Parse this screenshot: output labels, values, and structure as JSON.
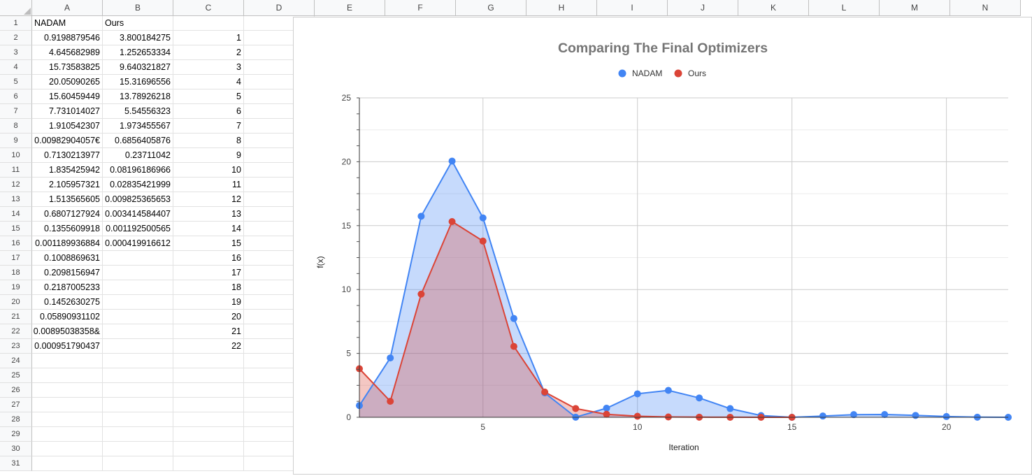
{
  "columns": [
    "A",
    "B",
    "C",
    "D",
    "E",
    "F",
    "G",
    "H",
    "I",
    "J",
    "K",
    "L",
    "M",
    "N"
  ],
  "rows": [
    "1",
    "2",
    "3",
    "4",
    "5",
    "6",
    "7",
    "8",
    "9",
    "10",
    "11",
    "12",
    "13",
    "14",
    "15",
    "16",
    "17",
    "18",
    "19",
    "20",
    "21",
    "22",
    "23",
    "24",
    "25",
    "26",
    "27",
    "28",
    "29",
    "30",
    "31"
  ],
  "headers": {
    "a1": "NADAM",
    "b1": "Ours"
  },
  "col_a": [
    "0.9198879546",
    "4.645682989",
    "15.73583825",
    "20.05090265",
    "15.60459449",
    "7.731014027",
    "1.910542307",
    "0.00982904057€",
    "0.7130213977",
    "1.835425942",
    "2.105957321",
    "1.513565605",
    "0.6807127924",
    "0.1355609918",
    "0.001189936884",
    "0.1008869631",
    "0.2098156947",
    "0.2187005233",
    "0.1452630275",
    "0.05890931102",
    "0.00895038358&",
    "0.000951790437"
  ],
  "col_b": [
    "3.800184275",
    "1.252653334",
    "9.640321827",
    "15.31696556",
    "13.78926218",
    "5.54556323",
    "1.973455567",
    "0.6856405876",
    "0.23711042",
    "0.08196186966",
    "0.02835421999",
    "0.009825365653",
    "0.003414584407",
    "0.001192500565",
    "0.000419916612"
  ],
  "col_c": [
    "1",
    "2",
    "3",
    "4",
    "5",
    "6",
    "7",
    "8",
    "9",
    "10",
    "11",
    "12",
    "13",
    "14",
    "15",
    "16",
    "17",
    "18",
    "19",
    "20",
    "21",
    "22"
  ],
  "chart_data": {
    "type": "area",
    "title": "Comparing The Final Optimizers",
    "xlabel": "Iteration",
    "ylabel": "f(x)",
    "xlim": [
      1,
      22
    ],
    "ylim": [
      0,
      25
    ],
    "x_ticks": [
      "5",
      "10",
      "15",
      "20"
    ],
    "y_ticks": [
      "0",
      "5",
      "10",
      "15",
      "20",
      "25"
    ],
    "legend_position": "top",
    "series": [
      {
        "name": "NADAM",
        "color": "#4285f4",
        "x": [
          1,
          2,
          3,
          4,
          5,
          6,
          7,
          8,
          9,
          10,
          11,
          12,
          13,
          14,
          15,
          16,
          17,
          18,
          19,
          20,
          21,
          22
        ],
        "y": [
          0.9198879546,
          4.645682989,
          15.73583825,
          20.05090265,
          15.60459449,
          7.731014027,
          1.910542307,
          0.00982904057,
          0.7130213977,
          1.835425942,
          2.105957321,
          1.513565605,
          0.6807127924,
          0.1355609918,
          0.001189936884,
          0.1008869631,
          0.2098156947,
          0.2187005233,
          0.1452630275,
          0.05890931102,
          0.00895038358,
          0.000951790437
        ]
      },
      {
        "name": "Ours",
        "color": "#db4437",
        "x": [
          1,
          2,
          3,
          4,
          5,
          6,
          7,
          8,
          9,
          10,
          11,
          12,
          13,
          14,
          15
        ],
        "y": [
          3.800184275,
          1.252653334,
          9.640321827,
          15.31696556,
          13.78926218,
          5.54556323,
          1.973455567,
          0.6856405876,
          0.23711042,
          0.08196186966,
          0.02835421999,
          0.009825365653,
          0.003414584407,
          0.001192500565,
          0.000419916612
        ]
      }
    ]
  }
}
